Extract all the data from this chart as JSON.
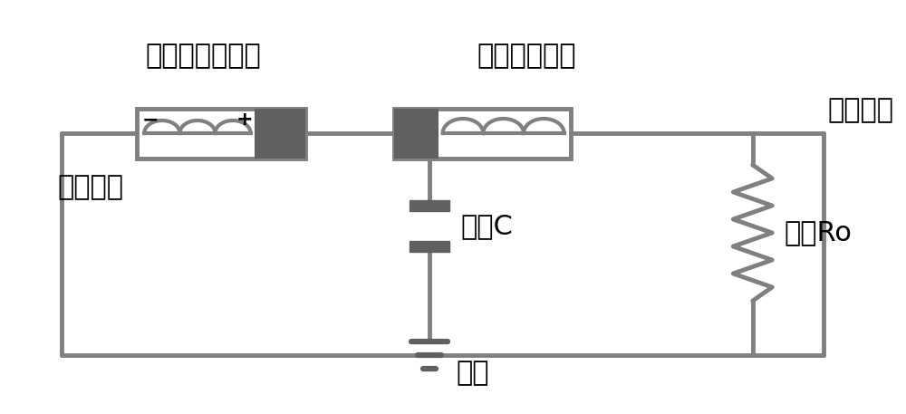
{
  "title": "",
  "background_color": "#ffffff",
  "line_color": "#808080",
  "line_width": 3.5,
  "dark_gray": "#606060",
  "light_gray": "#a0a0a0",
  "text_color": "#000000",
  "labels": {
    "nonvolatile": "非易失性忆阻器",
    "volatile": "易失性忆阻器",
    "output": "输出脉冲",
    "input": "激励脉冲",
    "capacitor": "电容C",
    "resistor": "电阻Ro",
    "ground": "接地"
  },
  "label_fontsize": 22,
  "symbol_fontsize": 20,
  "figsize": [
    10.0,
    4.57
  ]
}
